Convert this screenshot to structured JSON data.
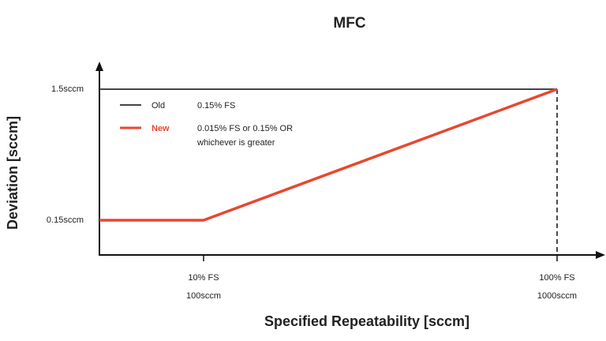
{
  "chart_data": {
    "type": "line",
    "title": "MFC",
    "xlabel": "Specified Repeatability [sccm]",
    "ylabel": "Deviation [sccm]",
    "x_ticks": [
      {
        "x": 100,
        "line1": "10% FS",
        "line2": "100sccm"
      },
      {
        "x": 1000,
        "line1": "100% FS",
        "line2": "1000sccm"
      }
    ],
    "y_ticks": [
      {
        "y": 0.15,
        "label": "0.15sccm"
      },
      {
        "y": 1.5,
        "label": "1.5sccm"
      }
    ],
    "series": [
      {
        "name": "Old",
        "desc": "0.15% FS",
        "color": "#444444",
        "points": [
          [
            0,
            1.5
          ],
          [
            1000,
            1.5
          ]
        ]
      },
      {
        "name": "New",
        "desc_line1": "0.015% FS or 0.15% OR",
        "desc_line2": "whichever is greater",
        "color": "#e8472f",
        "points": [
          [
            0,
            0.15
          ],
          [
            100,
            0.15
          ],
          [
            1000,
            1.5
          ]
        ]
      }
    ],
    "legend_position": "top-left",
    "grid": false
  }
}
